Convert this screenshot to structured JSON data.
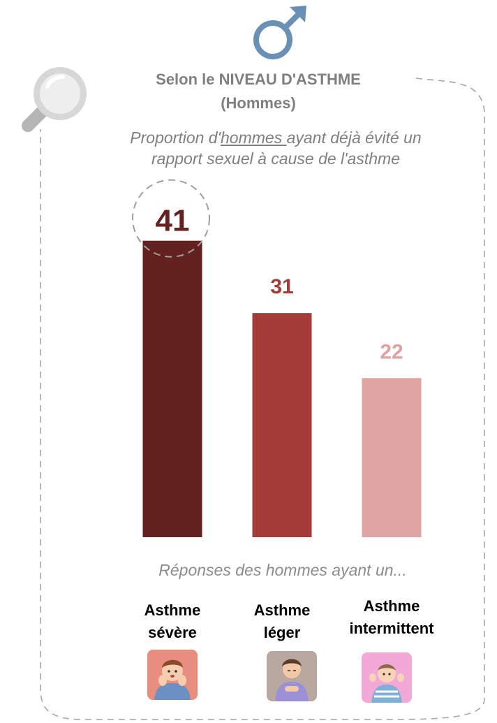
{
  "title_line1": "Selon le NIVEAU D'ASTHME",
  "title_line2": "(Hommes)",
  "subtitle": {
    "pre": "Proportion d'",
    "underlined": "hommes ",
    "post": "ayant déjà évité un rapport sexuel à cause de l'asthme"
  },
  "footer": "Réponses des hommes ayant un...",
  "icons": [
    "male-symbol-icon",
    "magnifier-icon",
    "man-severe-asthma-icon",
    "man-mild-asthma-icon",
    "boy-intermittent-asthma-icon"
  ],
  "colors": {
    "severe": "#63221f",
    "mild": "#a33b37",
    "intermittent": "#dfa3a1",
    "text_grey": "#7f7f7f",
    "male_symbol": "#6a90b5"
  },
  "chart_data": {
    "type": "bar",
    "categories": [
      "Asthme sévère",
      "Asthme léger",
      "Asthme intermittent"
    ],
    "category_lines": [
      [
        "Asthme",
        "sévère"
      ],
      [
        "Asthme",
        "léger"
      ],
      [
        "Asthme",
        "intermittent"
      ]
    ],
    "values": [
      41,
      31,
      22
    ],
    "highlight": "Asthme sévère",
    "grid": false,
    "legend": "none"
  }
}
